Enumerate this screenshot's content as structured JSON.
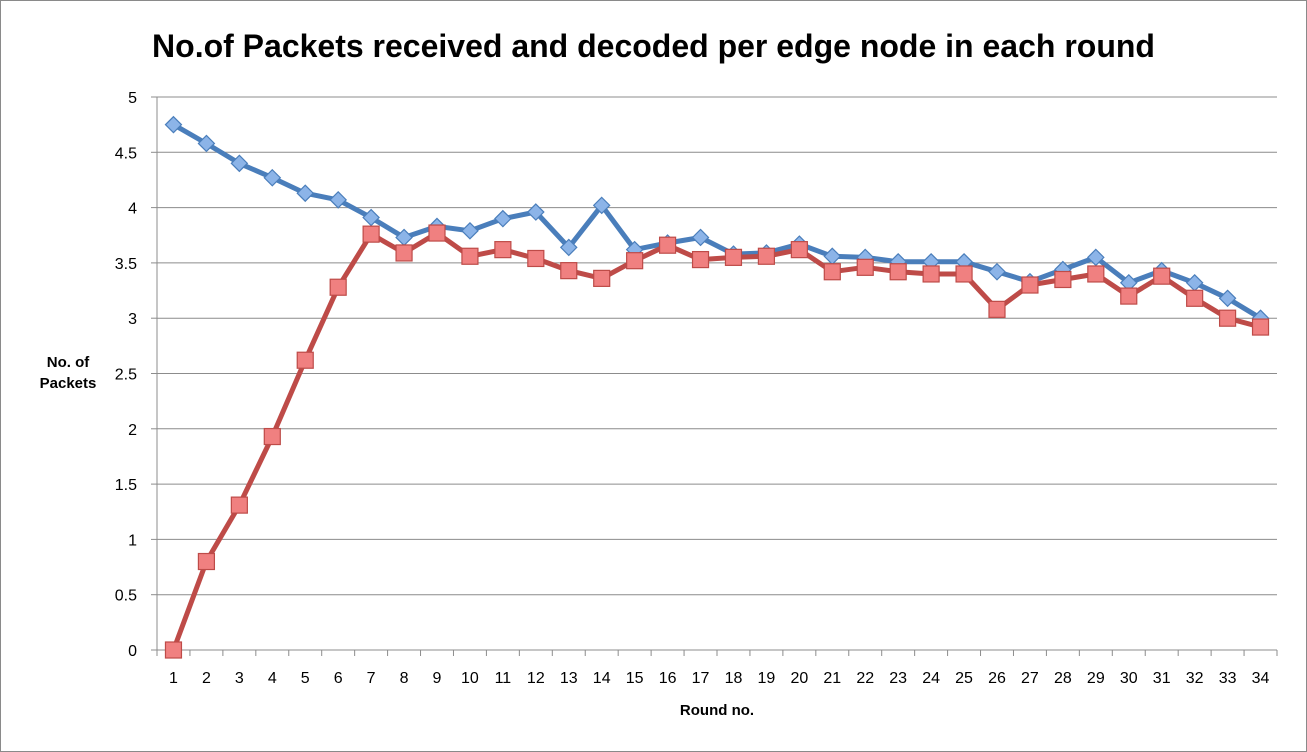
{
  "chart_data": {
    "type": "line",
    "title": "No.of Packets received and decoded per edge node in each round",
    "xlabel": "Round no.",
    "ylabel_lines": [
      "No. of",
      "Packets"
    ],
    "categories": [
      "1",
      "2",
      "3",
      "4",
      "5",
      "6",
      "7",
      "8",
      "9",
      "10",
      "11",
      "12",
      "13",
      "14",
      "15",
      "16",
      "17",
      "18",
      "19",
      "20",
      "21",
      "22",
      "23",
      "24",
      "25",
      "26",
      "27",
      "28",
      "29",
      "30",
      "31",
      "32",
      "33",
      "34"
    ],
    "ylim": [
      0,
      5
    ],
    "yticks": [
      "0",
      "0.5",
      "1",
      "1.5",
      "2",
      "2.5",
      "3",
      "3.5",
      "4",
      "4.5",
      "5"
    ],
    "grid": true,
    "legend": "none",
    "series": [
      {
        "color": "#4a7ebb",
        "marker": "diamond",
        "marker_fill": "#8cb4e8",
        "values": [
          4.75,
          4.58,
          4.4,
          4.27,
          4.13,
          4.07,
          3.91,
          3.73,
          3.83,
          3.79,
          3.9,
          3.96,
          3.64,
          4.02,
          3.62,
          3.68,
          3.73,
          3.58,
          3.59,
          3.67,
          3.56,
          3.55,
          3.51,
          3.51,
          3.51,
          3.42,
          3.33,
          3.44,
          3.55,
          3.32,
          3.43,
          3.32,
          3.18,
          3.0
        ]
      },
      {
        "color": "#be4b48",
        "marker": "square",
        "marker_fill": "#f08080",
        "values": [
          0.0,
          0.8,
          1.31,
          1.93,
          2.62,
          3.28,
          3.76,
          3.59,
          3.77,
          3.56,
          3.62,
          3.54,
          3.43,
          3.36,
          3.52,
          3.66,
          3.53,
          3.55,
          3.56,
          3.62,
          3.42,
          3.46,
          3.42,
          3.4,
          3.4,
          3.08,
          3.3,
          3.35,
          3.4,
          3.2,
          3.38,
          3.18,
          3.0,
          2.92
        ]
      }
    ]
  }
}
